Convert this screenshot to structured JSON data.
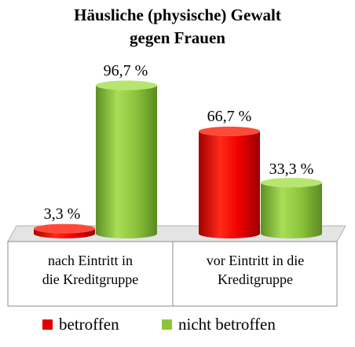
{
  "chart_data": {
    "type": "bar",
    "title": "Häusliche (physische) Gewalt gegen Frauen",
    "title_lines": [
      "Häusliche (physische) Gewalt",
      "gegen Frauen"
    ],
    "categories": [
      "nach Eintritt in die Kreditgruppe",
      "vor Eintritt in die Kreditgruppe"
    ],
    "category_lines": [
      [
        "nach Eintritt in",
        "die Kreditgruppe"
      ],
      [
        "vor Eintritt in die",
        "Kreditgruppe"
      ]
    ],
    "series": [
      {
        "name": "betroffen",
        "color": "#e00000",
        "values": [
          3.3,
          66.7
        ],
        "labels": [
          "3,3 %",
          "66,7 %"
        ]
      },
      {
        "name": "nicht betroffen",
        "color": "#8cc43c",
        "values": [
          96.7,
          33.3
        ],
        "labels": [
          "96,7 %",
          "33,3 %"
        ]
      }
    ],
    "ylim": [
      0,
      100
    ],
    "bar_style": "3d-cylinder",
    "grid": false,
    "legend_position": "bottom"
  }
}
